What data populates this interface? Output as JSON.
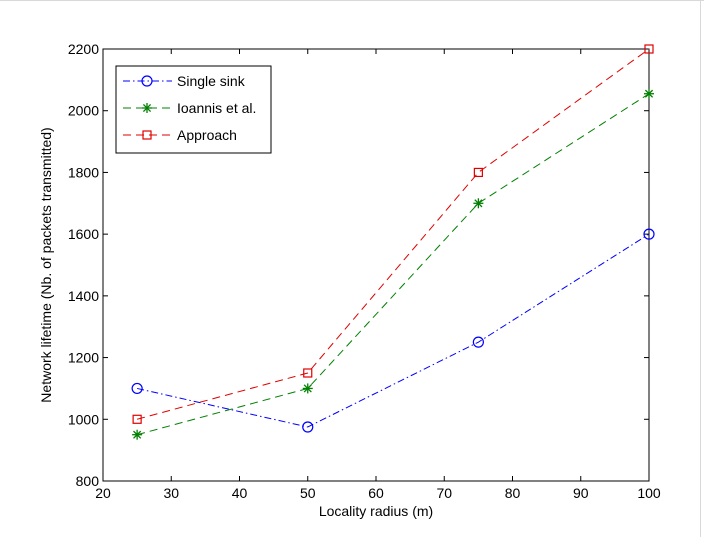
{
  "chart_data": {
    "type": "line",
    "xlabel": "Locality radius (m)",
    "ylabel": "Network lifetime (Nb. of packets transmitted)",
    "xlim": [
      20,
      100
    ],
    "ylim": [
      800,
      2200
    ],
    "xticks": [
      20,
      30,
      40,
      50,
      60,
      70,
      80,
      90,
      100
    ],
    "yticks": [
      800,
      1000,
      1200,
      1400,
      1600,
      1800,
      2000,
      2200
    ],
    "x": [
      25,
      50,
      75,
      100
    ],
    "grid": false,
    "legend_position": "top-left",
    "series": [
      {
        "name": "Single sink",
        "values": [
          1100,
          975,
          1250,
          1600
        ],
        "color": "#0000ff",
        "line_style": "dash-dot",
        "marker": "circle"
      },
      {
        "name": "Ioannis et al.",
        "values": [
          950,
          1100,
          1700,
          2055
        ],
        "color": "#008000",
        "line_style": "dashed",
        "marker": "asterisk"
      },
      {
        "name": "Approach",
        "values": [
          1000,
          1150,
          1800,
          2200
        ],
        "color": "#e00000",
        "line_style": "dashed",
        "marker": "square"
      }
    ]
  }
}
